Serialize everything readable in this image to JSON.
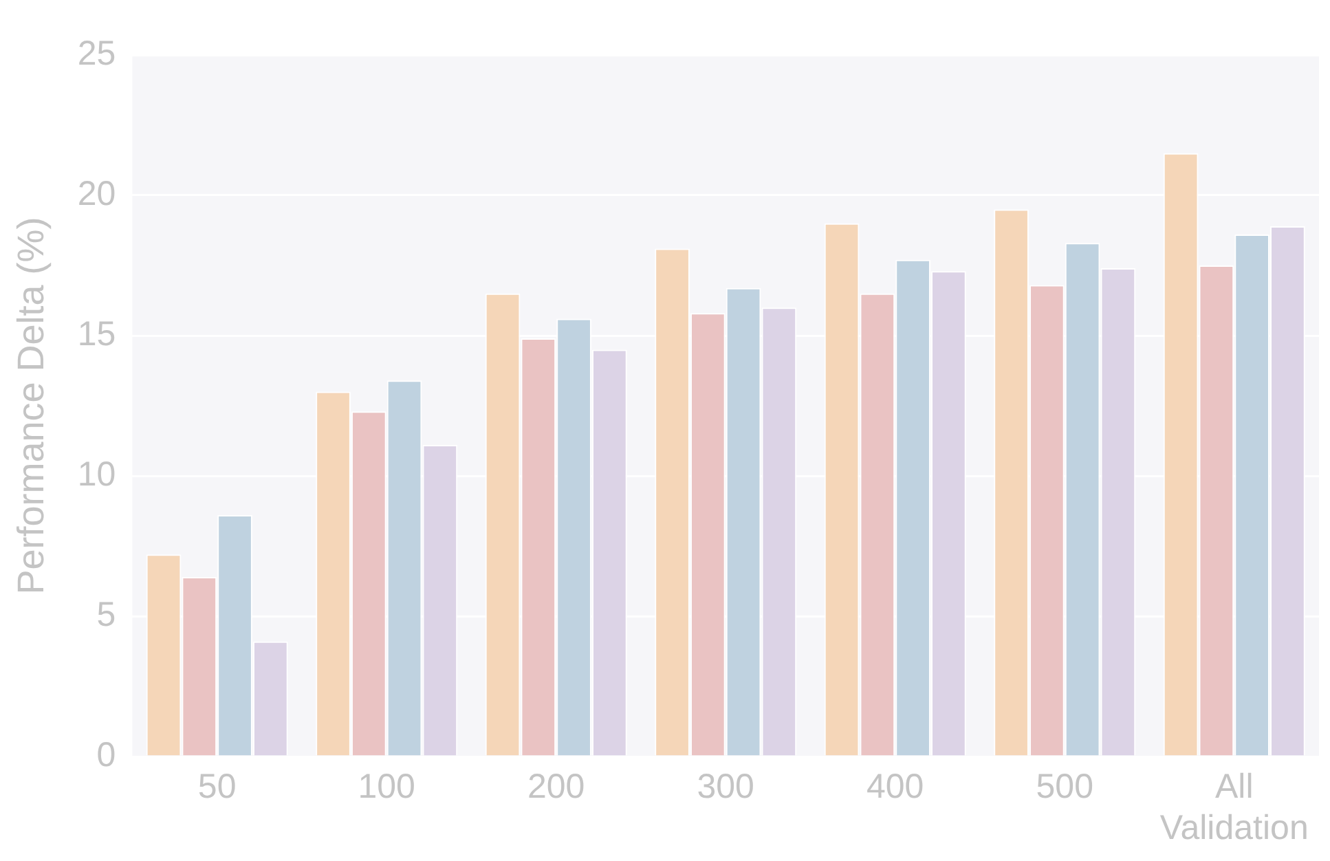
{
  "chart_data": {
    "type": "bar",
    "ylabel": "Performance Delta (%)",
    "categories": [
      "50",
      "100",
      "200",
      "300",
      "400",
      "500",
      "All Validation"
    ],
    "series": [
      {
        "color": "#f5d6b8",
        "values": [
          7.2,
          13.0,
          16.5,
          18.1,
          19.0,
          19.5,
          21.5
        ]
      },
      {
        "color": "#eac3c3",
        "values": [
          6.4,
          12.3,
          14.9,
          15.8,
          16.5,
          16.8,
          17.5
        ]
      },
      {
        "color": "#bfd2e0",
        "values": [
          8.6,
          13.4,
          15.6,
          16.7,
          17.7,
          18.3,
          18.6
        ]
      },
      {
        "color": "#dcd3e6",
        "values": [
          4.1,
          11.1,
          14.5,
          16.0,
          17.3,
          17.4,
          18.9
        ]
      }
    ],
    "ylim": [
      0,
      25
    ],
    "yticks": [
      0,
      5,
      10,
      15,
      20,
      25
    ],
    "grid": "y",
    "legend": false
  }
}
